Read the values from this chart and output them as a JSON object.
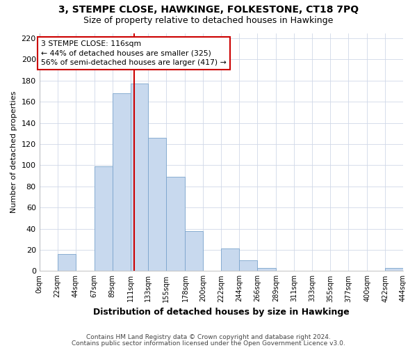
{
  "title": "3, STEMPE CLOSE, HAWKINGE, FOLKESTONE, CT18 7PQ",
  "subtitle": "Size of property relative to detached houses in Hawkinge",
  "xlabel": "Distribution of detached houses by size in Hawkinge",
  "ylabel": "Number of detached properties",
  "bar_edges": [
    0,
    22,
    44,
    67,
    89,
    111,
    133,
    155,
    178,
    200,
    222,
    244,
    266,
    289,
    311,
    333,
    355,
    377,
    400,
    422,
    444
  ],
  "bar_heights": [
    0,
    16,
    0,
    99,
    168,
    177,
    126,
    89,
    38,
    0,
    21,
    10,
    3,
    0,
    0,
    0,
    0,
    0,
    0,
    3
  ],
  "bar_color": "#c8d9ee",
  "bar_edge_color": "#7aa4cc",
  "vline_x": 116,
  "vline_color": "#cc0000",
  "ylim": [
    0,
    225
  ],
  "yticks": [
    0,
    20,
    40,
    60,
    80,
    100,
    120,
    140,
    160,
    180,
    200,
    220
  ],
  "xtick_labels": [
    "0sqm",
    "22sqm",
    "44sqm",
    "67sqm",
    "89sqm",
    "111sqm",
    "133sqm",
    "155sqm",
    "178sqm",
    "200sqm",
    "222sqm",
    "244sqm",
    "266sqm",
    "289sqm",
    "311sqm",
    "333sqm",
    "355sqm",
    "377sqm",
    "400sqm",
    "422sqm",
    "444sqm"
  ],
  "annotation_title": "3 STEMPE CLOSE: 116sqm",
  "annotation_line1": "← 44% of detached houses are smaller (325)",
  "annotation_line2": "56% of semi-detached houses are larger (417) →",
  "footnote1": "Contains HM Land Registry data © Crown copyright and database right 2024.",
  "footnote2": "Contains public sector information licensed under the Open Government Licence v3.0.",
  "bg_color": "#ffffff",
  "grid_color": "#d0d8e8"
}
